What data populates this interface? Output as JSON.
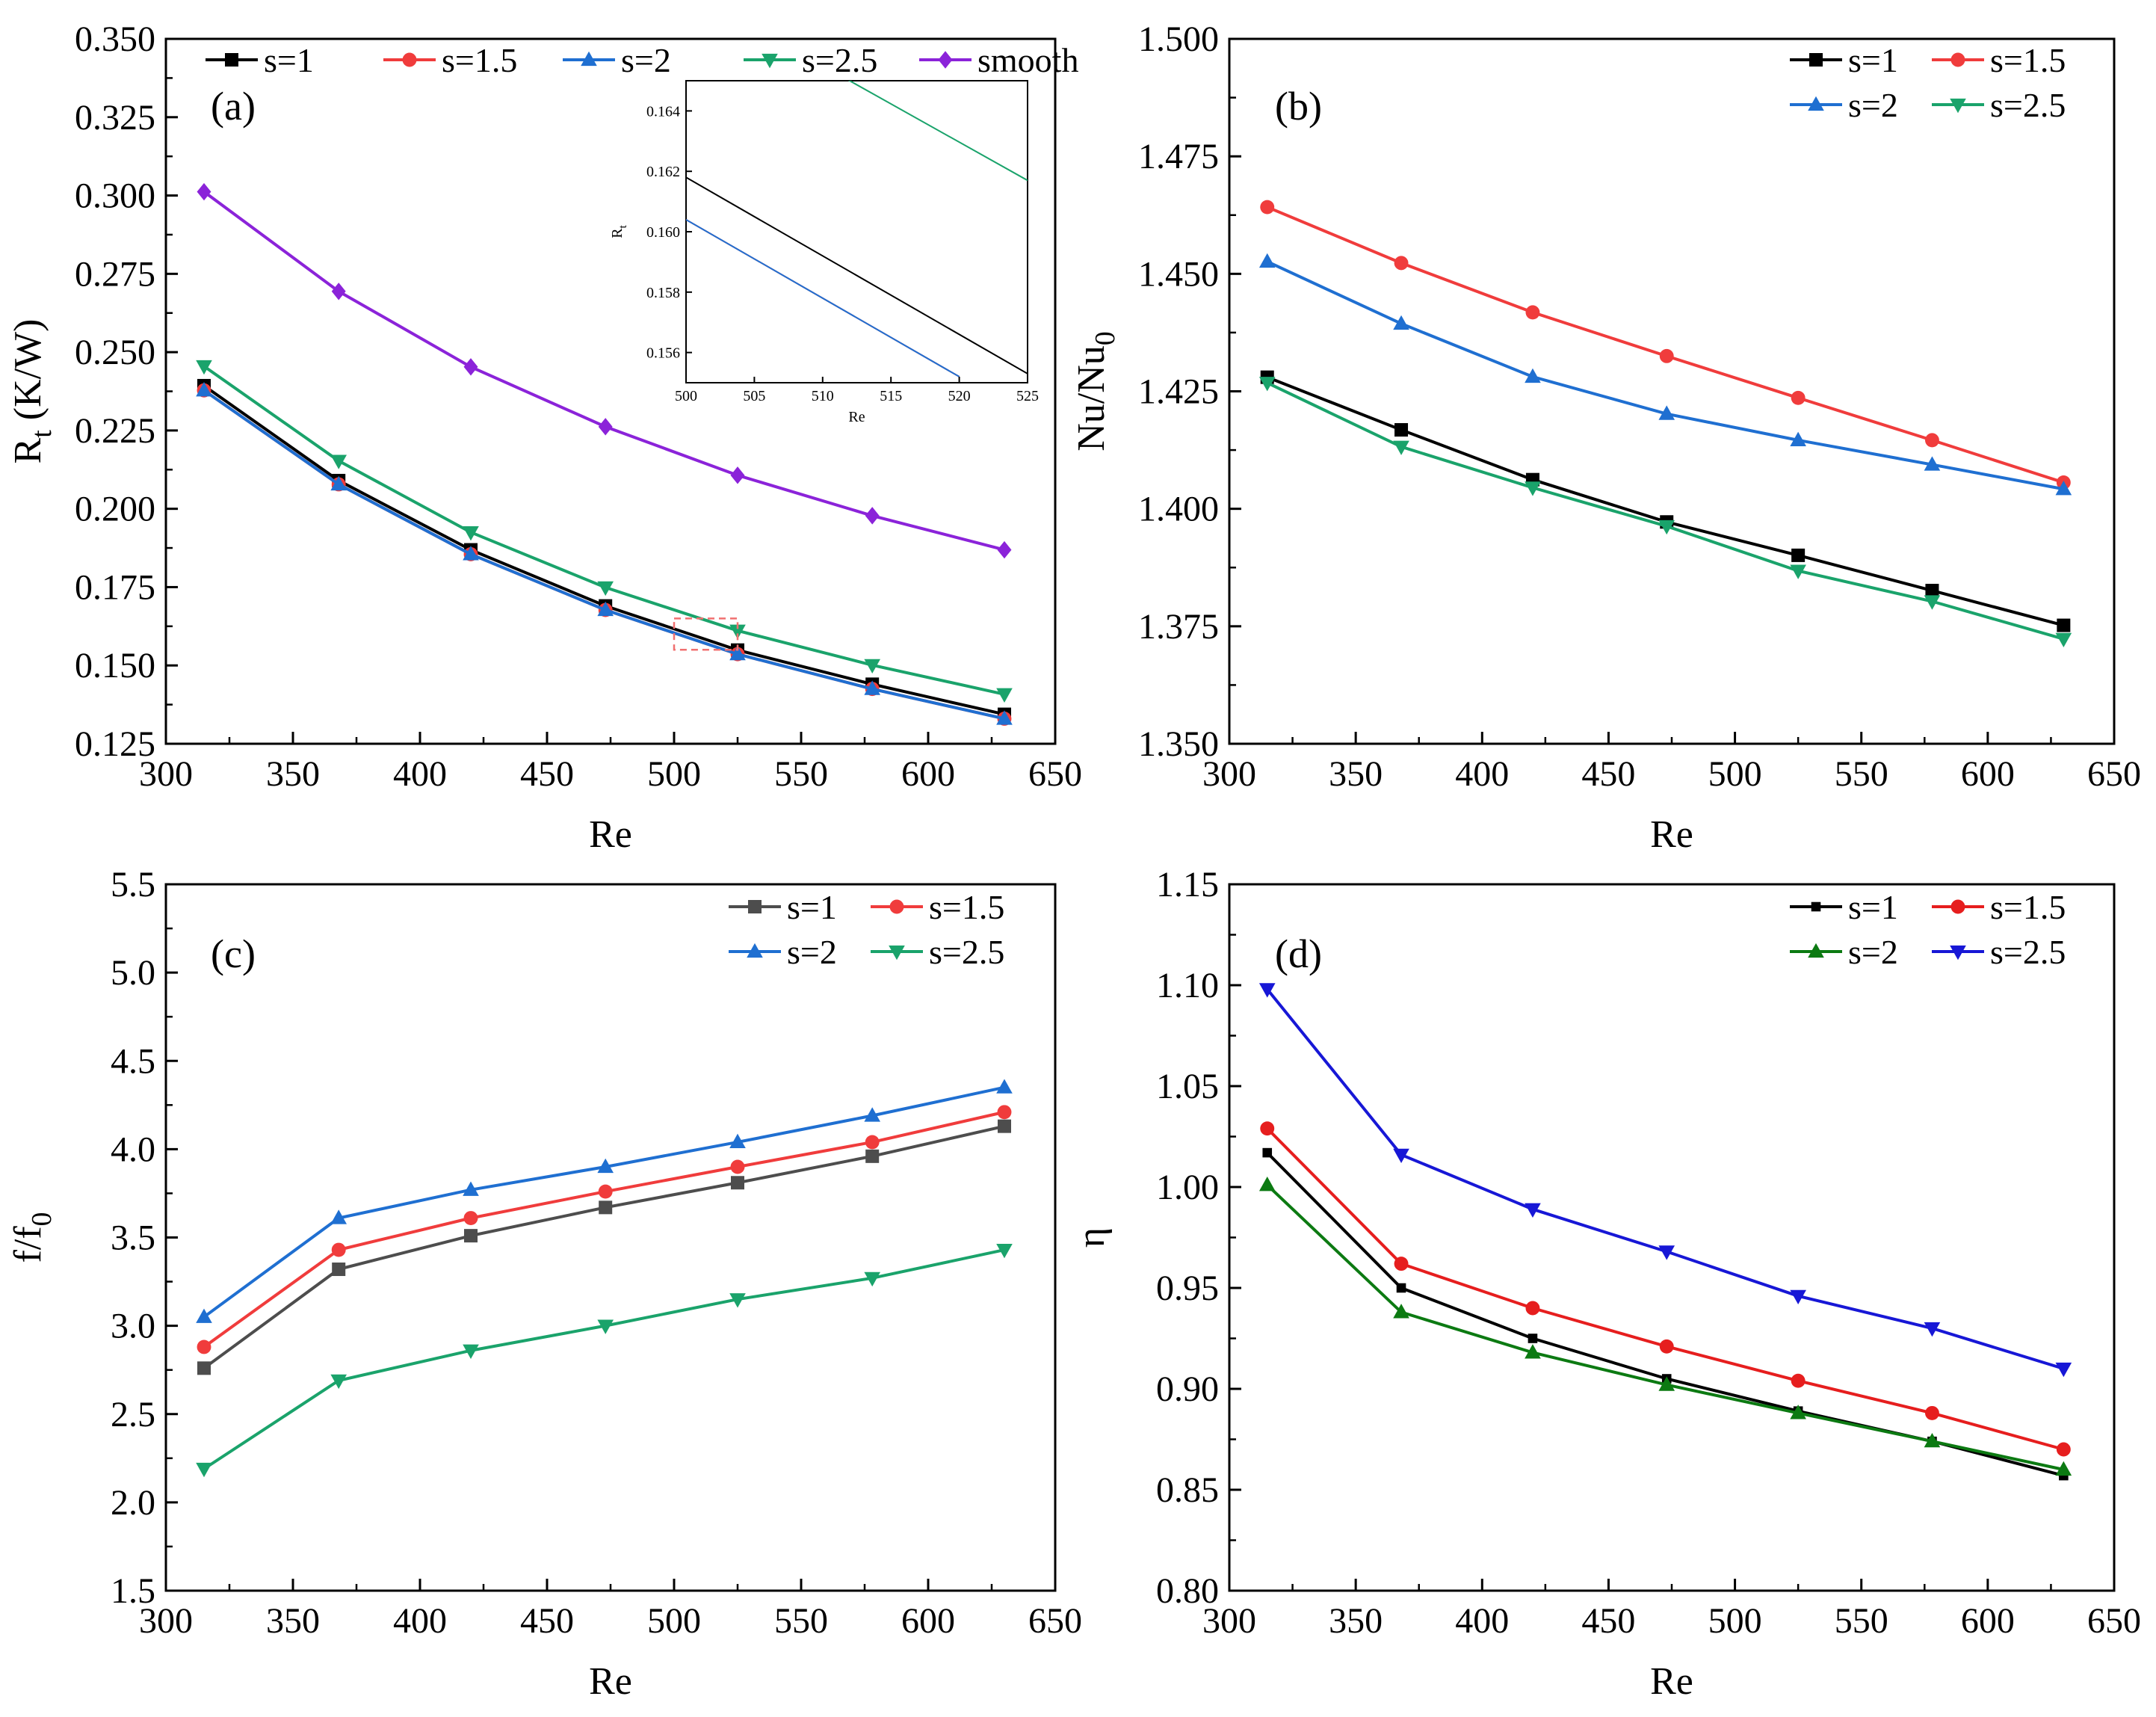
{
  "chart_data": [
    {
      "type": "line",
      "panel_label": "(a)",
      "xlabel": "Re",
      "ylabel": "R",
      "ylabel_sub": "t",
      "ylabel_unit": " (K/W)",
      "x": [
        315,
        368,
        420,
        473,
        525,
        578,
        630
      ],
      "xlim": [
        300,
        650
      ],
      "ylim": [
        0.125,
        0.35
      ],
      "xticks": [
        300,
        350,
        400,
        450,
        500,
        550,
        600,
        650
      ],
      "yticks": [
        0.125,
        0.15,
        0.175,
        0.2,
        0.225,
        0.25,
        0.275,
        0.3,
        0.325,
        0.35
      ],
      "ydecimals": 3,
      "legend_position": "top",
      "series": [
        {
          "name": "s=1",
          "color": "#000000",
          "marker": "square",
          "values": [
            0.2393,
            0.209,
            0.1869,
            0.169,
            0.1549,
            0.144,
            0.1344
          ]
        },
        {
          "name": "s=1.5",
          "color": "#f03c3c",
          "marker": "circle",
          "values": [
            0.2378,
            0.2078,
            0.1855,
            0.1677,
            0.1536,
            0.1425,
            0.133
          ]
        },
        {
          "name": "s=2",
          "color": "#1f6fd1",
          "marker": "triangle-up",
          "values": [
            0.2378,
            0.2078,
            0.1855,
            0.1677,
            0.1536,
            0.1425,
            0.133
          ]
        },
        {
          "name": "s=2.5",
          "color": "#1aa36b",
          "marker": "triangle-down",
          "values": [
            0.2455,
            0.2153,
            0.1925,
            0.1749,
            0.1611,
            0.1501,
            0.1408
          ]
        },
        {
          "name": "smooth",
          "color": "#8b23d9",
          "marker": "diamond",
          "values": [
            0.3012,
            0.2694,
            0.2453,
            0.2262,
            0.2107,
            0.1978,
            0.1869
          ]
        }
      ],
      "inset": {
        "xlabel": "Re",
        "ylabel": "R",
        "ylabel_sub": "t",
        "xlim": [
          500,
          525
        ],
        "ylim": [
          0.155,
          0.165
        ],
        "xticks": [
          500,
          505,
          510,
          515,
          520,
          525
        ],
        "yticks": [
          0.156,
          0.158,
          0.16,
          0.162,
          0.164
        ],
        "ydecimals": 3,
        "series": [
          {
            "color": "#000000",
            "values": [
              [
                500,
                0.1618
              ],
              [
                525,
                0.1553
              ]
            ]
          },
          {
            "color": "#f03c3c",
            "values": [
              [
                500,
                0.1604
              ],
              [
                520,
                0.1552
              ]
            ]
          },
          {
            "color": "#1f6fd1",
            "values": [
              [
                500,
                0.1604
              ],
              [
                520,
                0.1552
              ]
            ]
          },
          {
            "color": "#1aa36b",
            "values": [
              [
                510,
                0.1655
              ],
              [
                525,
                0.1617
              ]
            ]
          }
        ]
      }
    },
    {
      "type": "line",
      "panel_label": "(b)",
      "xlabel": "Re",
      "ylabel": "Nu/Nu",
      "ylabel_sub": "0",
      "x": [
        315,
        368,
        420,
        473,
        525,
        578,
        630
      ],
      "xlim": [
        300,
        650
      ],
      "ylim": [
        1.35,
        1.5
      ],
      "xticks": [
        300,
        350,
        400,
        450,
        500,
        550,
        600,
        650
      ],
      "yticks": [
        1.35,
        1.375,
        1.4,
        1.425,
        1.45,
        1.475,
        1.5
      ],
      "ydecimals": 3,
      "legend_position": "top-right",
      "series": [
        {
          "name": "s=1",
          "color": "#000000",
          "marker": "square",
          "values": [
            1.428,
            1.4168,
            1.4062,
            1.3972,
            1.3901,
            1.3826,
            1.3752
          ]
        },
        {
          "name": "s=1.5",
          "color": "#f03c3c",
          "marker": "circle",
          "values": [
            1.4642,
            1.4523,
            1.4418,
            1.4325,
            1.4236,
            1.4146,
            1.4056
          ]
        },
        {
          "name": "s=2",
          "color": "#1f6fd1",
          "marker": "triangle-up",
          "values": [
            1.4526,
            1.4394,
            1.4281,
            1.4202,
            1.4146,
            1.4094,
            1.4042
          ]
        },
        {
          "name": "s=2.5",
          "color": "#1aa36b",
          "marker": "triangle-down",
          "values": [
            1.4268,
            1.4132,
            1.4045,
            1.3963,
            1.3868,
            1.3803,
            1.3723
          ]
        }
      ]
    },
    {
      "type": "line",
      "panel_label": "(c)",
      "xlabel": "Re",
      "ylabel": "f/f",
      "ylabel_sub": "0",
      "x": [
        315,
        368,
        420,
        473,
        525,
        578,
        630
      ],
      "xlim": [
        300,
        650
      ],
      "ylim": [
        1.5,
        5.5
      ],
      "xticks": [
        300,
        350,
        400,
        450,
        500,
        550,
        600,
        650
      ],
      "yticks": [
        1.5,
        2.0,
        2.5,
        3.0,
        3.5,
        4.0,
        4.5,
        5.0,
        5.5
      ],
      "ydecimals": 1,
      "legend_position": "top-right",
      "series": [
        {
          "name": "s=1",
          "color": "#4d4d4d",
          "marker": "square",
          "values": [
            2.76,
            3.32,
            3.51,
            3.67,
            3.81,
            3.96,
            4.13
          ]
        },
        {
          "name": "s=1.5",
          "color": "#f03c3c",
          "marker": "circle",
          "values": [
            2.88,
            3.43,
            3.61,
            3.76,
            3.9,
            4.04,
            4.21
          ]
        },
        {
          "name": "s=2",
          "color": "#1f6fd1",
          "marker": "triangle-up",
          "values": [
            3.05,
            3.61,
            3.77,
            3.9,
            4.04,
            4.19,
            4.35
          ]
        },
        {
          "name": "s=2.5",
          "color": "#1aa36b",
          "marker": "triangle-down",
          "values": [
            2.19,
            2.69,
            2.86,
            3.0,
            3.15,
            3.27,
            3.43
          ]
        }
      ]
    },
    {
      "type": "line",
      "panel_label": "(d)",
      "xlabel": "Re",
      "ylabel": "η",
      "x": [
        315,
        368,
        420,
        473,
        525,
        578,
        630
      ],
      "xlim": [
        300,
        650
      ],
      "ylim": [
        0.8,
        1.15
      ],
      "xticks": [
        300,
        350,
        400,
        450,
        500,
        550,
        600,
        650
      ],
      "yticks": [
        0.8,
        0.85,
        0.9,
        0.95,
        1.0,
        1.05,
        1.1,
        1.15
      ],
      "ydecimals": 2,
      "legend_position": "top-right",
      "series": [
        {
          "name": "s=1",
          "color": "#000000",
          "marker": "small-square",
          "values": [
            1.017,
            0.95,
            0.925,
            0.905,
            0.889,
            0.874,
            0.857
          ]
        },
        {
          "name": "s=1.5",
          "color": "#e61e1e",
          "marker": "circle",
          "values": [
            1.029,
            0.962,
            0.94,
            0.921,
            0.904,
            0.888,
            0.87
          ]
        },
        {
          "name": "s=2",
          "color": "#0c7a12",
          "marker": "triangle-up",
          "values": [
            1.001,
            0.938,
            0.918,
            0.902,
            0.888,
            0.874,
            0.86
          ]
        },
        {
          "name": "s=2.5",
          "color": "#1717d6",
          "marker": "triangle-down",
          "values": [
            1.098,
            1.016,
            0.989,
            0.968,
            0.946,
            0.93,
            0.91
          ]
        }
      ]
    }
  ]
}
